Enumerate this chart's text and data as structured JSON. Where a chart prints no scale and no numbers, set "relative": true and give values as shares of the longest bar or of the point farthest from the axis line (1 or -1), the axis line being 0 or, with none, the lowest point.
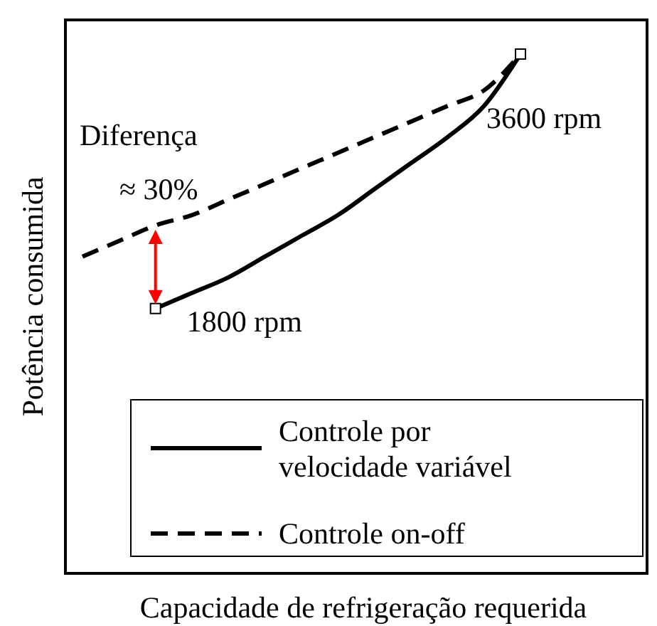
{
  "chart_data": {
    "type": "line",
    "relative": true,
    "xlabel": "Capacidade de refrigeração requerida",
    "ylabel": "Potência consumida",
    "categories": [
      null,
      null,
      null,
      null,
      null,
      null,
      null,
      null,
      null,
      null,
      null,
      null,
      null
    ],
    "series": [
      {
        "name": "Controle por velocidade variável",
        "color": "#000000",
        "line_style": "solid",
        "values": [
          null,
          null,
          0.51,
          0.54,
          0.57,
          0.61,
          0.65,
          0.69,
          0.74,
          0.79,
          0.84,
          0.9,
          1
        ]
      },
      {
        "name": "Controle on-off",
        "color": "#000000",
        "line_style": "dashed",
        "values": [
          0.61,
          0.64,
          0.67,
          0.69,
          0.72,
          0.75,
          0.78,
          0.81,
          0.84,
          0.87,
          0.9,
          0.93,
          1
        ]
      }
    ],
    "annotations": [
      "Diferença",
      "≈ 30%",
      "1800 rpm",
      "3600 rpm"
    ],
    "legend": "bottom"
  }
}
